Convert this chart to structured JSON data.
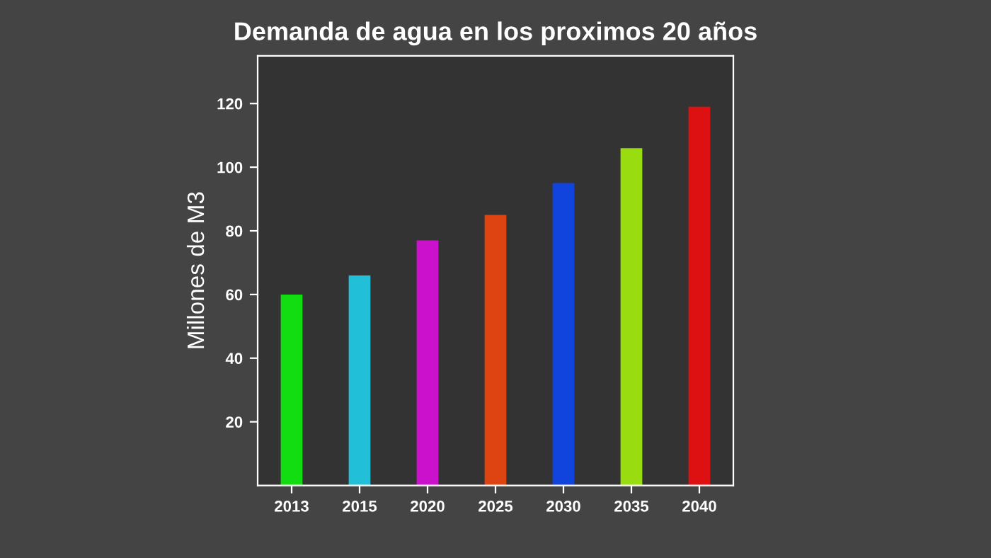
{
  "chart_data": {
    "type": "bar",
    "title": "Demanda de agua en los proximos 20 años",
    "ylabel": "Millones de M3",
    "categories": [
      "2013",
      "2015",
      "2020",
      "2025",
      "2030",
      "2035",
      "2040"
    ],
    "values": [
      60,
      66,
      77,
      85,
      95,
      106,
      119
    ],
    "colors": [
      "#11dd11",
      "#22c0d8",
      "#cc11cc",
      "#dd4411",
      "#1144dd",
      "#99dd11",
      "#dd1111"
    ],
    "ylim": [
      0,
      135
    ],
    "yticks": [
      20,
      40,
      60,
      80,
      100,
      120
    ],
    "grid": false
  }
}
